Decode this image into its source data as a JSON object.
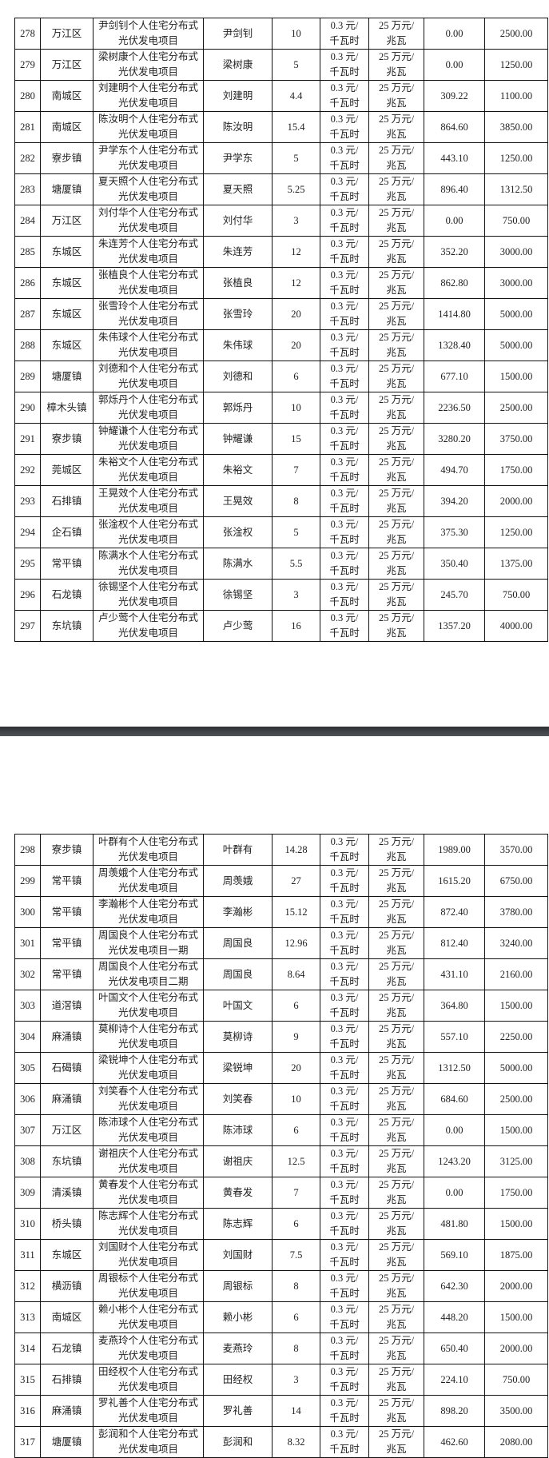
{
  "pages": [
    {
      "rows": [
        [
          "278",
          "万江区",
          "尹剑钊个人住宅分布式光伏发电项目",
          "尹剑钊",
          "10",
          "0.3 元/\n千瓦时",
          "25 万元/\n兆瓦",
          "0.00",
          "2500.00"
        ],
        [
          "279",
          "万江区",
          "梁树康个人住宅分布式光伏发电项目",
          "梁树康",
          "5",
          "0.3 元/\n千瓦时",
          "25 万元/\n兆瓦",
          "0.00",
          "1250.00"
        ],
        [
          "280",
          "南城区",
          "刘建明个人住宅分布式光伏发电项目",
          "刘建明",
          "4.4",
          "0.3 元/\n千瓦时",
          "25 万元/\n兆瓦",
          "309.22",
          "1100.00"
        ],
        [
          "281",
          "南城区",
          "陈汝明个人住宅分布式光伏发电项目",
          "陈汝明",
          "15.4",
          "0.3 元/\n千瓦时",
          "25 万元/\n兆瓦",
          "864.60",
          "3850.00"
        ],
        [
          "282",
          "寮步镇",
          "尹学东个人住宅分布式光伏发电项目",
          "尹学东",
          "5",
          "0.3 元/\n千瓦时",
          "25 万元/\n兆瓦",
          "443.10",
          "1250.00"
        ],
        [
          "283",
          "塘厦镇",
          "夏天照个人住宅分布式光伏发电项目",
          "夏天照",
          "5.25",
          "0.3 元/\n千瓦时",
          "25 万元/\n兆瓦",
          "896.40",
          "1312.50"
        ],
        [
          "284",
          "万江区",
          "刘付华个人住宅分布式光伏发电项目",
          "刘付华",
          "3",
          "0.3 元/\n千瓦时",
          "25 万元/\n兆瓦",
          "0.00",
          "750.00"
        ],
        [
          "285",
          "东城区",
          "朱连芳个人住宅分布式光伏发电项目",
          "朱连芳",
          "12",
          "0.3 元/\n千瓦时",
          "25 万元/\n兆瓦",
          "352.20",
          "3000.00"
        ],
        [
          "286",
          "东城区",
          "张植良个人住宅分布式光伏发电项目",
          "张植良",
          "12",
          "0.3 元/\n千瓦时",
          "25 万元/\n兆瓦",
          "862.80",
          "3000.00"
        ],
        [
          "287",
          "东城区",
          "张雪玲个人住宅分布式光伏发电项目",
          "张雪玲",
          "20",
          "0.3 元/\n千瓦时",
          "25 万元/\n兆瓦",
          "1414.80",
          "5000.00"
        ],
        [
          "288",
          "东城区",
          "朱伟球个人住宅分布式光伏发电项目",
          "朱伟球",
          "20",
          "0.3 元/\n千瓦时",
          "25 万元/\n兆瓦",
          "1328.40",
          "5000.00"
        ],
        [
          "289",
          "塘厦镇",
          "刘德和个人住宅分布式光伏发电项目",
          "刘德和",
          "6",
          "0.3 元/\n千瓦时",
          "25 万元/\n兆瓦",
          "677.10",
          "1500.00"
        ],
        [
          "290",
          "樟木头镇",
          "郭烁丹个人住宅分布式光伏发电项目",
          "郭烁丹",
          "10",
          "0.3 元/\n千瓦时",
          "25 万元/\n兆瓦",
          "2236.50",
          "2500.00"
        ],
        [
          "291",
          "寮步镇",
          "钟耀谦个人住宅分布式光伏发电项目",
          "钟耀谦",
          "15",
          "0.3 元/\n千瓦时",
          "25 万元/\n兆瓦",
          "3280.20",
          "3750.00"
        ],
        [
          "292",
          "莞城区",
          "朱裕文个人住宅分布式光伏发电项目",
          "朱裕文",
          "7",
          "0.3 元/\n千瓦时",
          "25 万元/\n兆瓦",
          "494.70",
          "1750.00"
        ],
        [
          "293",
          "石排镇",
          "王晃效个人住宅分布式光伏发电项目",
          "王晃效",
          "8",
          "0.3 元/\n千瓦时",
          "25 万元/\n兆瓦",
          "394.20",
          "2000.00"
        ],
        [
          "294",
          "企石镇",
          "张淦权个人住宅分布式光伏发电项目",
          "张淦权",
          "5",
          "0.3 元/\n千瓦时",
          "25 万元/\n兆瓦",
          "375.30",
          "1250.00"
        ],
        [
          "295",
          "常平镇",
          "陈满水个人住宅分布式光伏发电项目",
          "陈满水",
          "5.5",
          "0.3 元/\n千瓦时",
          "25 万元/\n兆瓦",
          "350.40",
          "1375.00"
        ],
        [
          "296",
          "石龙镇",
          "徐锡坚个人住宅分布式光伏发电项目",
          "徐锡坚",
          "3",
          "0.3 元/\n千瓦时",
          "25 万元/\n兆瓦",
          "245.70",
          "750.00"
        ],
        [
          "297",
          "东坑镇",
          "卢少莺个人住宅分布式光伏发电项目",
          "卢少莺",
          "16",
          "0.3 元/\n千瓦时",
          "25 万元/\n兆瓦",
          "1357.20",
          "4000.00"
        ]
      ]
    },
    {
      "rows": [
        [
          "298",
          "寮步镇",
          "叶群有个人住宅分布式光伏发电项目",
          "叶群有",
          "14.28",
          "0.3 元/\n千瓦时",
          "25 万元/\n兆瓦",
          "1989.00",
          "3570.00"
        ],
        [
          "299",
          "常平镇",
          "周羡娥个人住宅分布式光伏发电项目",
          "周羡娥",
          "27",
          "0.3 元/\n千瓦时",
          "25 万元/\n兆瓦",
          "1615.20",
          "6750.00"
        ],
        [
          "300",
          "常平镇",
          "李瀚彬个人住宅分布式光伏发电项目",
          "李瀚彬",
          "15.12",
          "0.3 元/\n千瓦时",
          "25 万元/\n兆瓦",
          "872.40",
          "3780.00"
        ],
        [
          "301",
          "常平镇",
          "周国良个人住宅分布式光伏发电项目一期",
          "周国良",
          "12.96",
          "0.3 元/\n千瓦时",
          "25 万元/\n兆瓦",
          "812.40",
          "3240.00"
        ],
        [
          "302",
          "常平镇",
          "周国良个人住宅分布式光伏发电项目二期",
          "周国良",
          "8.64",
          "0.3 元/\n千瓦时",
          "25 万元/\n兆瓦",
          "431.10",
          "2160.00"
        ],
        [
          "303",
          "道滘镇",
          "叶国文个人住宅分布式光伏发电项目",
          "叶国文",
          "6",
          "0.3 元/\n千瓦时",
          "25 万元/\n兆瓦",
          "364.80",
          "1500.00"
        ],
        [
          "304",
          "麻涌镇",
          "莫柳诗个人住宅分布式光伏发电项目",
          "莫柳诗",
          "9",
          "0.3 元/\n千瓦时",
          "25 万元/\n兆瓦",
          "557.10",
          "2250.00"
        ],
        [
          "305",
          "石碣镇",
          "梁锐坤个人住宅分布式光伏发电项目",
          "梁锐坤",
          "20",
          "0.3 元/\n千瓦时",
          "25 万元/\n兆瓦",
          "1312.50",
          "5000.00"
        ],
        [
          "306",
          "麻涌镇",
          "刘笑春个人住宅分布式光伏发电项目",
          "刘笑春",
          "10",
          "0.3 元/\n千瓦时",
          "25 万元/\n兆瓦",
          "684.60",
          "2500.00"
        ],
        [
          "307",
          "万江区",
          "陈沛球个人住宅分布式光伏发电项目",
          "陈沛球",
          "6",
          "0.3 元/\n千瓦时",
          "25 万元/\n兆瓦",
          "0.00",
          "1500.00"
        ],
        [
          "308",
          "东坑镇",
          "谢祖庆个人住宅分布式光伏发电项目",
          "谢祖庆",
          "12.5",
          "0.3 元/\n千瓦时",
          "25 万元/\n兆瓦",
          "1243.20",
          "3125.00"
        ],
        [
          "309",
          "清溪镇",
          "黄春发个人住宅分布式光伏发电项目",
          "黄春发",
          "7",
          "0.3 元/\n千瓦时",
          "25 万元/\n兆瓦",
          "0.00",
          "1750.00"
        ],
        [
          "310",
          "桥头镇",
          "陈志辉个人住宅分布式光伏发电项目",
          "陈志辉",
          "6",
          "0.3 元/\n千瓦时",
          "25 万元/\n兆瓦",
          "481.80",
          "1500.00"
        ],
        [
          "311",
          "东城区",
          "刘国财个人住宅分布式光伏发电项目",
          "刘国财",
          "7.5",
          "0.3 元/\n千瓦时",
          "25 万元/\n兆瓦",
          "569.10",
          "1875.00"
        ],
        [
          "312",
          "横沥镇",
          "周银标个人住宅分布式光伏发电项目",
          "周银标",
          "8",
          "0.3 元/\n千瓦时",
          "25 万元/\n兆瓦",
          "642.30",
          "2000.00"
        ],
        [
          "313",
          "南城区",
          "赖小彬个人住宅分布式光伏发电项目",
          "赖小彬",
          "6",
          "0.3 元/\n千瓦时",
          "25 万元/\n兆瓦",
          "448.20",
          "1500.00"
        ],
        [
          "314",
          "石龙镇",
          "麦燕玲个人住宅分布式光伏发电项目",
          "麦燕玲",
          "8",
          "0.3 元/\n千瓦时",
          "25 万元/\n兆瓦",
          "650.40",
          "2000.00"
        ],
        [
          "315",
          "石排镇",
          "田经权个人住宅分布式光伏发电项目",
          "田经权",
          "3",
          "0.3 元/\n千瓦时",
          "25 万元/\n兆瓦",
          "224.10",
          "750.00"
        ],
        [
          "316",
          "麻涌镇",
          "罗礼善个人住宅分布式光伏发电项目",
          "罗礼善",
          "14",
          "0.3 元/\n千瓦时",
          "25 万元/\n兆瓦",
          "898.20",
          "3500.00"
        ],
        [
          "317",
          "塘厦镇",
          "彭润和个人住宅分布式光伏发电项目",
          "彭润和",
          "8.32",
          "0.3 元/\n千瓦时",
          "25 万元/\n兆瓦",
          "462.60",
          "2080.00"
        ]
      ]
    }
  ]
}
